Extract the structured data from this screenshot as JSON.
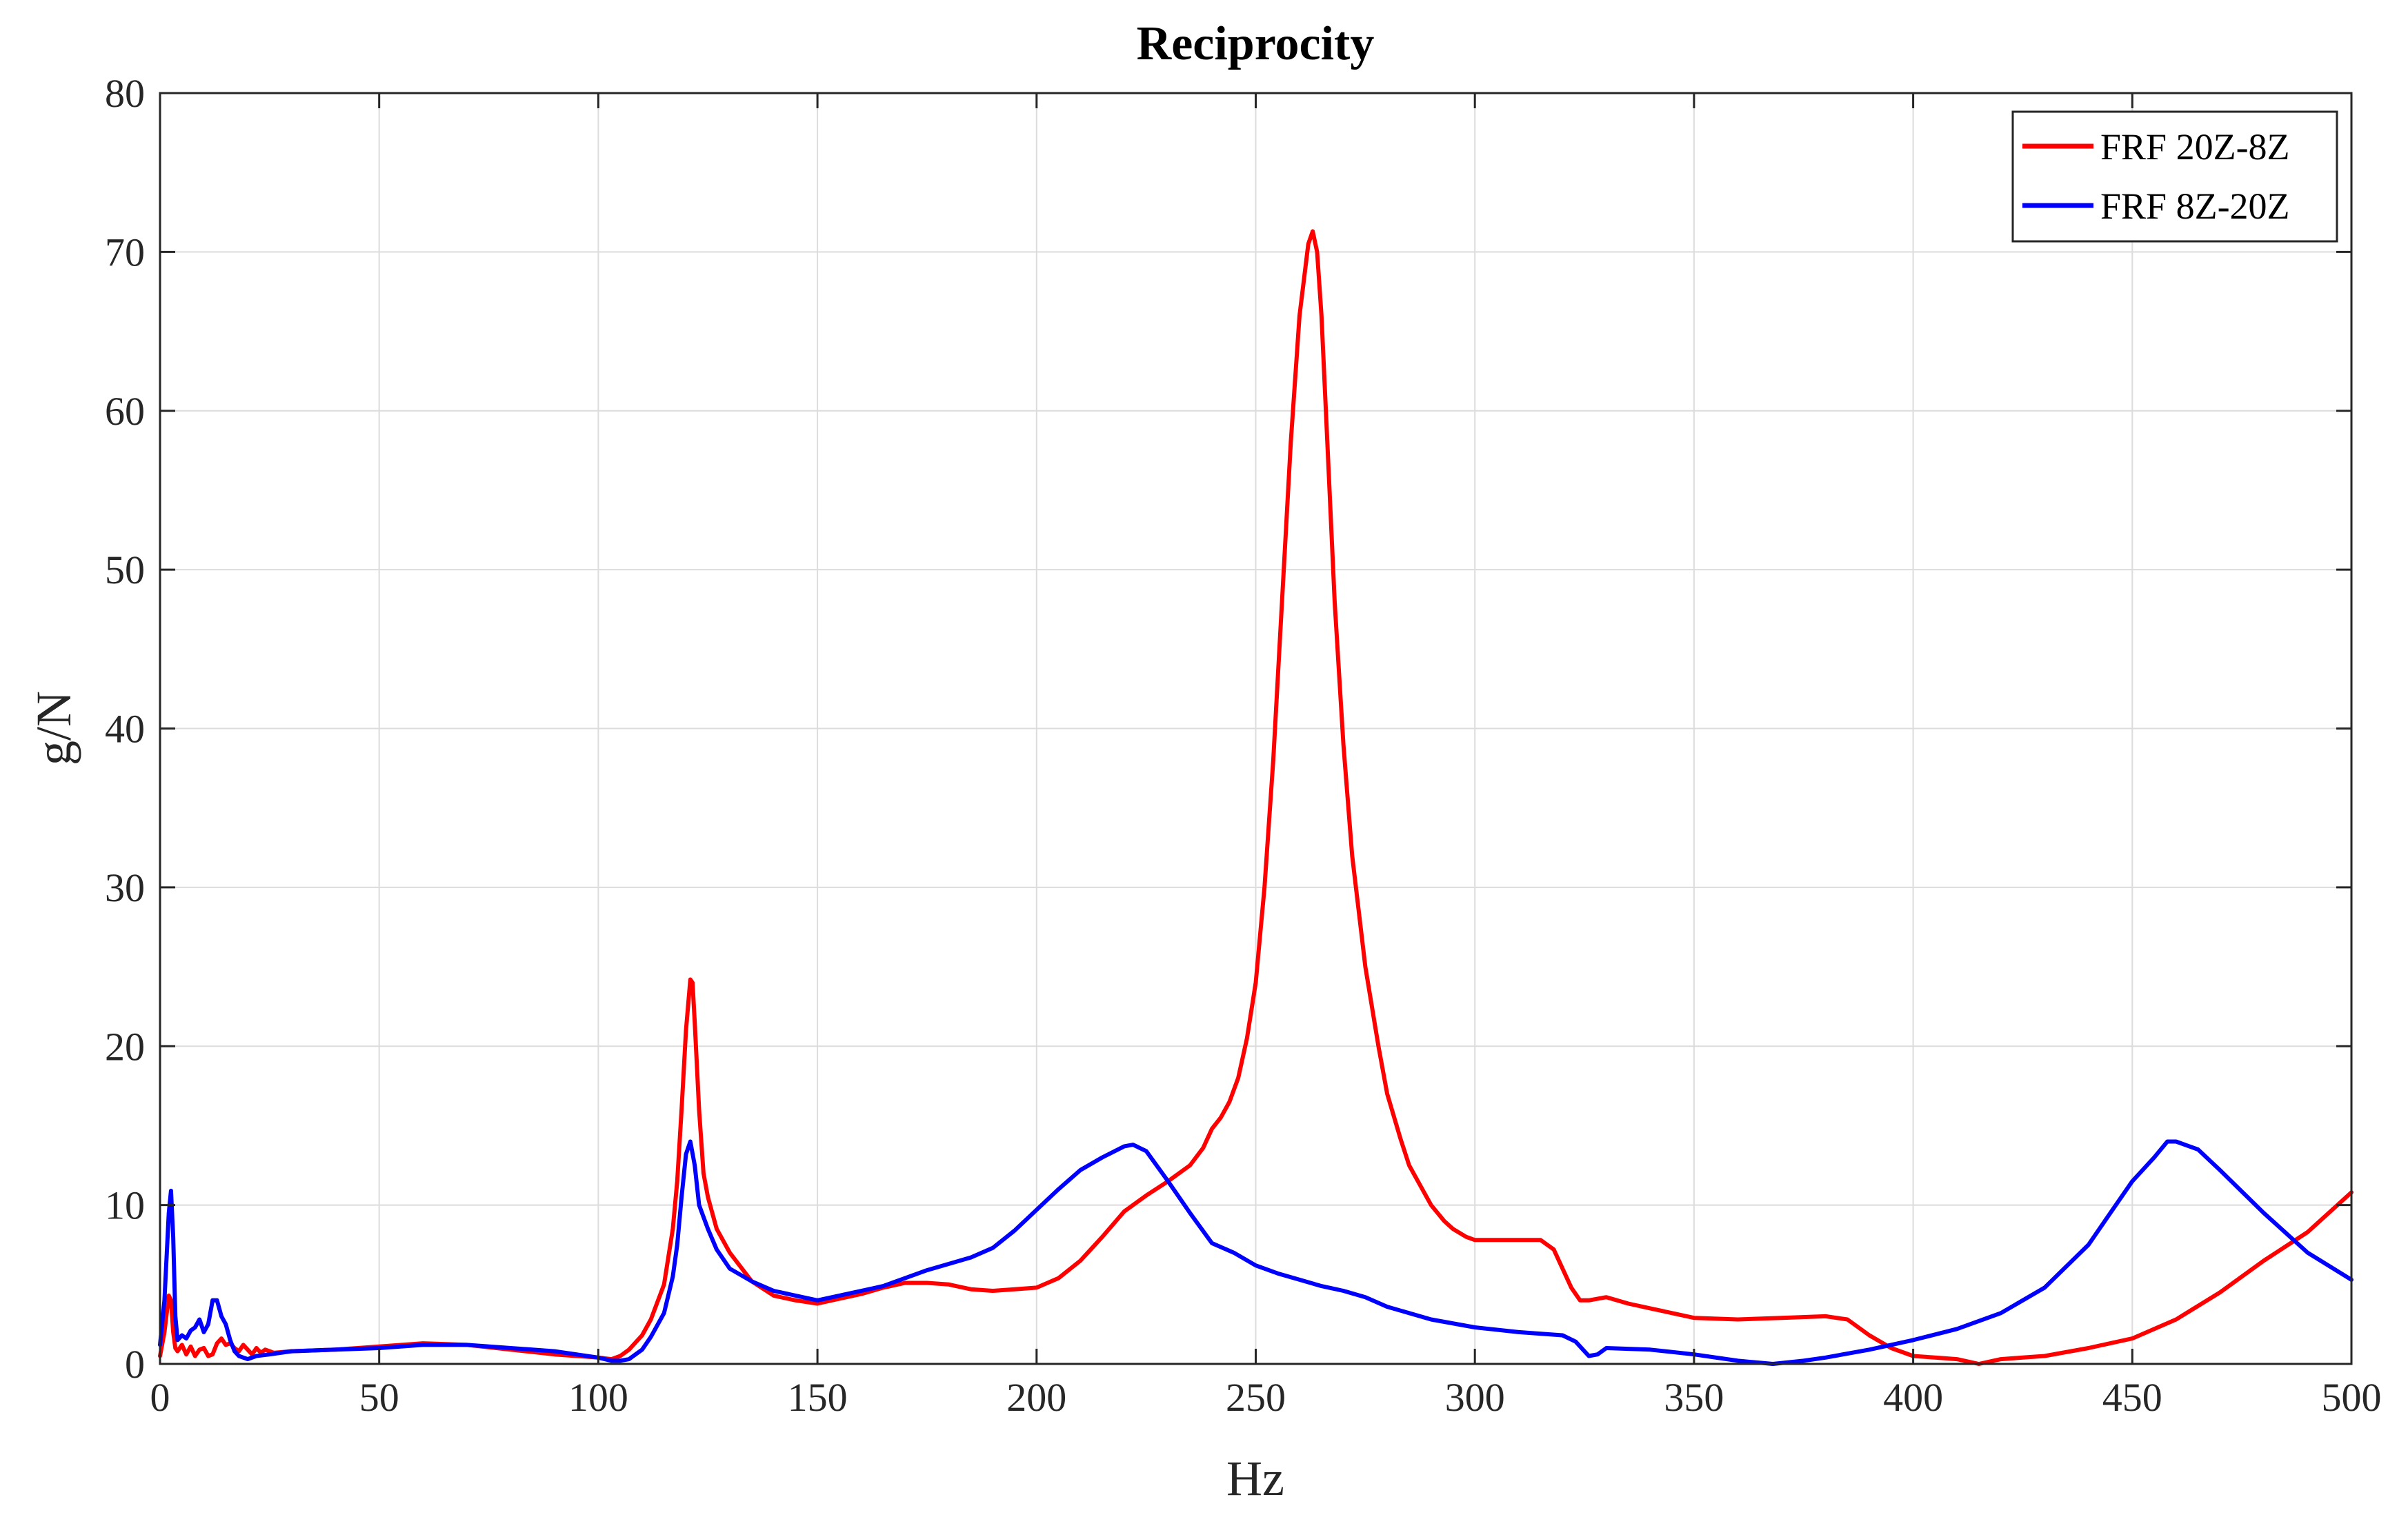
{
  "chart_data": {
    "type": "line",
    "title": "Reciprocity",
    "xlabel": "Hz",
    "ylabel": "g/N",
    "xlim": [
      0,
      500
    ],
    "ylim": [
      0,
      80
    ],
    "xticks": [
      0,
      50,
      100,
      150,
      200,
      250,
      300,
      350,
      400,
      450,
      500
    ],
    "yticks": [
      0,
      10,
      20,
      30,
      40,
      50,
      60,
      70,
      80
    ],
    "grid": true,
    "legend_position": "top-right",
    "series": [
      {
        "name": "FRF 20Z-8Z",
        "color": "#ff0000",
        "x": [
          0,
          1,
          2,
          2.5,
          3,
          3.5,
          4,
          5,
          6,
          7,
          8,
          9,
          10,
          11,
          12,
          13,
          14,
          15,
          16,
          17,
          18,
          19,
          20,
          21,
          22,
          23,
          24,
          25,
          26,
          30,
          40,
          50,
          60,
          70,
          80,
          90,
          95,
          100,
          103,
          105,
          107,
          110,
          112,
          115,
          117,
          118,
          119,
          120,
          121,
          121.5,
          122,
          123,
          124,
          125,
          127,
          130,
          135,
          140,
          145,
          150,
          155,
          160,
          165,
          170,
          175,
          180,
          185,
          190,
          195,
          200,
          205,
          210,
          215,
          220,
          225,
          230,
          235,
          238,
          240,
          242,
          244,
          246,
          248,
          250,
          252,
          254,
          256,
          258,
          260,
          262,
          263,
          264,
          265,
          266,
          268,
          270,
          272,
          275,
          278,
          280,
          283,
          285,
          288,
          290,
          293,
          295,
          298,
          300,
          305,
          310,
          315,
          318,
          320,
          322,
          324,
          326,
          330,
          335,
          340,
          345,
          350,
          360,
          370,
          380,
          385,
          390,
          395,
          400,
          405,
          410,
          415,
          420,
          425,
          430,
          440,
          450,
          460,
          470,
          480,
          490,
          500
        ],
        "values": [
          0.5,
          2.0,
          4.3,
          4.0,
          2.0,
          1.0,
          0.8,
          1.2,
          0.6,
          1.1,
          0.5,
          0.9,
          1.0,
          0.5,
          0.6,
          1.3,
          1.6,
          1.2,
          1.3,
          1.0,
          0.8,
          1.2,
          0.9,
          0.6,
          1.0,
          0.7,
          0.9,
          0.8,
          0.7,
          0.8,
          0.9,
          1.1,
          1.3,
          1.2,
          0.9,
          0.6,
          0.5,
          0.4,
          0.3,
          0.5,
          0.9,
          1.8,
          2.8,
          5.0,
          8.5,
          11.5,
          16.0,
          21.0,
          24.2,
          24.0,
          21.5,
          16.0,
          12.0,
          10.5,
          8.5,
          7.0,
          5.2,
          4.3,
          4.0,
          3.8,
          4.1,
          4.4,
          4.8,
          5.1,
          5.1,
          5.0,
          4.7,
          4.6,
          4.7,
          4.8,
          5.4,
          6.5,
          8.0,
          9.6,
          10.6,
          11.5,
          12.5,
          13.6,
          14.8,
          15.5,
          16.5,
          18.0,
          20.5,
          24.0,
          30.0,
          38.0,
          48.0,
          58.0,
          66.0,
          70.5,
          71.3,
          70.0,
          66.0,
          60.0,
          48.0,
          39.0,
          32.0,
          25.0,
          20.0,
          17.0,
          14.2,
          12.5,
          11.0,
          10.0,
          9.0,
          8.5,
          8.0,
          7.8,
          7.8,
          7.8,
          7.8,
          7.2,
          6.0,
          4.8,
          4.0,
          4.0,
          4.2,
          3.8,
          3.5,
          3.2,
          2.9,
          2.8,
          2.9,
          3.0,
          2.8,
          1.8,
          1.0,
          0.5,
          0.4,
          0.3,
          0.0,
          0.3,
          0.4,
          0.5,
          1.0,
          1.6,
          2.8,
          4.5,
          6.5,
          8.3,
          10.8
        ]
      },
      {
        "name": "FRF 8Z-20Z",
        "color": "#0000ff",
        "x": [
          0,
          1,
          2,
          2.5,
          3,
          3.5,
          4,
          5,
          6,
          7,
          8,
          9,
          10,
          11,
          12,
          13,
          14,
          15,
          16,
          17,
          18,
          19,
          20,
          21,
          22,
          25,
          30,
          40,
          50,
          60,
          70,
          80,
          90,
          95,
          100,
          103,
          105,
          107,
          110,
          112,
          115,
          117,
          118,
          119,
          120,
          121,
          122,
          123,
          125,
          127,
          130,
          135,
          140,
          145,
          150,
          155,
          160,
          165,
          170,
          175,
          180,
          185,
          190,
          195,
          200,
          205,
          210,
          215,
          220,
          222,
          225,
          230,
          235,
          240,
          245,
          250,
          255,
          260,
          265,
          270,
          275,
          280,
          290,
          300,
          310,
          320,
          323,
          326,
          328,
          330,
          340,
          350,
          360,
          368,
          375,
          380,
          390,
          400,
          410,
          420,
          430,
          440,
          445,
          450,
          455,
          458,
          460,
          465,
          470,
          480,
          490,
          500
        ],
        "values": [
          1.2,
          4.0,
          9.5,
          10.9,
          8.0,
          3.0,
          1.5,
          1.8,
          1.6,
          2.1,
          2.3,
          2.8,
          2.0,
          2.5,
          4.0,
          4.0,
          3.0,
          2.5,
          1.5,
          0.8,
          0.5,
          0.4,
          0.3,
          0.4,
          0.5,
          0.6,
          0.8,
          0.9,
          1.0,
          1.2,
          1.2,
          1.0,
          0.8,
          0.6,
          0.4,
          0.2,
          0.2,
          0.3,
          0.9,
          1.7,
          3.2,
          5.5,
          7.5,
          10.5,
          13.2,
          14.0,
          12.5,
          10.0,
          8.5,
          7.2,
          6.0,
          5.2,
          4.6,
          4.3,
          4.0,
          4.3,
          4.6,
          4.9,
          5.4,
          5.9,
          6.3,
          6.7,
          7.3,
          8.4,
          9.7,
          11.0,
          12.2,
          13.0,
          13.7,
          13.8,
          13.4,
          11.5,
          9.5,
          7.6,
          7.0,
          6.2,
          5.7,
          5.3,
          4.9,
          4.6,
          4.2,
          3.6,
          2.8,
          2.3,
          2.0,
          1.8,
          1.4,
          0.5,
          0.6,
          1.0,
          0.9,
          0.6,
          0.2,
          0.0,
          0.2,
          0.4,
          0.9,
          1.5,
          2.2,
          3.2,
          4.8,
          7.5,
          9.5,
          11.5,
          13.0,
          14.0,
          14.0,
          13.5,
          12.2,
          9.5,
          7.0,
          5.3
        ]
      }
    ]
  }
}
